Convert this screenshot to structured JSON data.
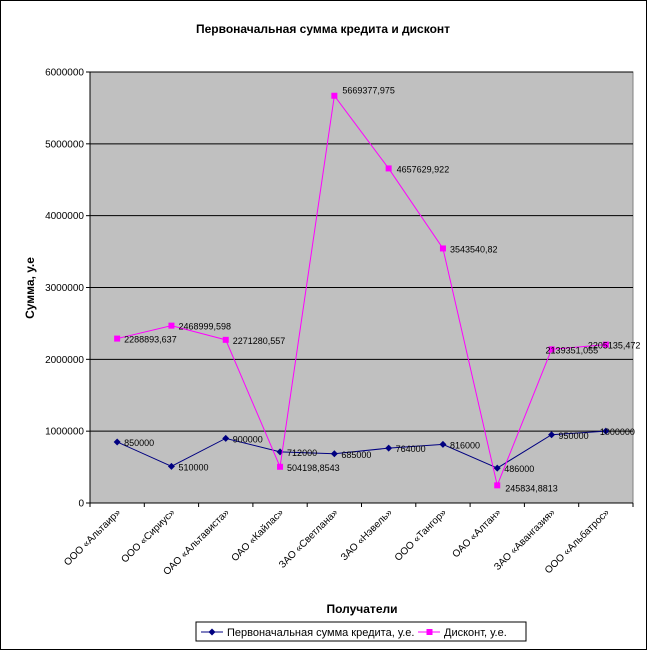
{
  "chart_data": {
    "type": "line",
    "title": "Первоначальная сумма кредита и дисконт",
    "xlabel": "Получатели",
    "ylabel": "Сумма, у.е",
    "ylim": [
      0,
      6000000
    ],
    "yticks": [
      0,
      1000000,
      2000000,
      3000000,
      4000000,
      5000000,
      6000000
    ],
    "yticklabels": [
      "0",
      "1000000",
      "2000000",
      "3000000",
      "4000000",
      "5000000",
      "6000000"
    ],
    "grid": true,
    "legend_position": "bottom",
    "categories": [
      "ООО «Альтаир»",
      "ООО «Сириус»",
      "ОАО «Альтависта»",
      "ОАО «Кайлас»",
      "ЗАО «Светлана»",
      "ЗАО «Нэвель»",
      "ООО «Тангор»",
      "ОАО «Алтан»",
      "ЗАО «Авангазия»",
      "ООО «Альбатрос»"
    ],
    "series": [
      {
        "name": "Первоначальная сумма кредита, у.е.",
        "color": "#000080",
        "marker": "diamond",
        "values": [
          850000,
          510000,
          900000,
          712000,
          685000,
          764000,
          816000,
          486000,
          950000,
          1000000
        ],
        "labels": [
          "850000",
          "510000",
          "900000",
          "712000",
          "685000",
          "764000",
          "816000",
          "486000",
          "950000",
          "1000000"
        ]
      },
      {
        "name": "Дисконт, у.е.",
        "color": "#ff00ff",
        "marker": "square",
        "values": [
          2288893.637,
          2468999.598,
          2271280.557,
          504198.8543,
          5669377.975,
          4657629.922,
          3543540.82,
          245834.8813,
          2139351.055,
          2205135.472
        ],
        "labels": [
          "2288893,637",
          "2468999,598",
          "2271280,557",
          "504198,8543",
          "5669377,975",
          "4657629,922",
          "3543540,82",
          "245834,8813",
          "2139351,055",
          "2205135,472"
        ]
      }
    ]
  },
  "colors": {
    "plot_background": "#c0c0c0",
    "gridline": "#000000"
  }
}
